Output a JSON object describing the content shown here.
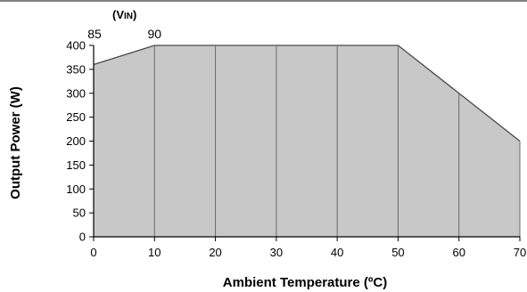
{
  "chart_data": {
    "type": "area",
    "xlabel": "Ambient Temperature (ºC)",
    "ylabel": "Output Power (W)",
    "xlim": [
      0,
      70
    ],
    "ylim": [
      0,
      400
    ],
    "x_ticks": [
      0,
      10,
      20,
      30,
      40,
      50,
      60,
      70
    ],
    "y_ticks": [
      0,
      50,
      100,
      150,
      200,
      250,
      300,
      350,
      400
    ],
    "grid": "vertical",
    "series": [
      {
        "x": [
          0,
          10,
          20,
          30,
          40,
          50,
          60,
          70
        ],
        "y": [
          360,
          400,
          400,
          400,
          400,
          400,
          300,
          200
        ]
      }
    ],
    "annotations": {
      "vin_title": "VIN",
      "vin_labels": [
        {
          "text": "85",
          "x": 0
        },
        {
          "text": "90",
          "x": 10
        }
      ]
    },
    "colors": {
      "fill": "#c8c8c8",
      "line": "#4a4a4a",
      "grid": "#6a6a6a",
      "axis": "#000000"
    }
  }
}
